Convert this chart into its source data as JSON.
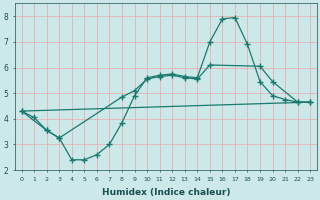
{
  "xlabel": "Humidex (Indice chaleur)",
  "bg_color": "#cce8e8",
  "line_color": "#1a7a6e",
  "grid_color": "#e8a8a8",
  "xlim": [
    -0.5,
    23.5
  ],
  "ylim": [
    2,
    8.5
  ],
  "xticks": [
    0,
    1,
    2,
    3,
    4,
    5,
    6,
    7,
    8,
    9,
    10,
    11,
    12,
    13,
    14,
    15,
    16,
    17,
    18,
    19,
    20,
    21,
    22,
    23
  ],
  "yticks": [
    2,
    3,
    4,
    5,
    6,
    7,
    8
  ],
  "line1_x": [
    0,
    1,
    2,
    3,
    4,
    5,
    6,
    7,
    8,
    9,
    10,
    11,
    12,
    13,
    14,
    15,
    16,
    17,
    18,
    19,
    20,
    21,
    22,
    23
  ],
  "line1_y": [
    4.3,
    4.05,
    3.55,
    3.25,
    2.4,
    2.4,
    2.6,
    3.0,
    3.85,
    4.9,
    5.6,
    5.7,
    5.75,
    5.65,
    5.6,
    7.0,
    7.9,
    7.95,
    6.9,
    5.45,
    4.9,
    4.75,
    4.65,
    4.65
  ],
  "line2_x": [
    0,
    2,
    3,
    8,
    9,
    10,
    11,
    12,
    13,
    14,
    15,
    19,
    20,
    22,
    23
  ],
  "line2_y": [
    4.3,
    3.55,
    3.25,
    4.85,
    5.1,
    5.55,
    5.65,
    5.7,
    5.6,
    5.55,
    6.1,
    6.05,
    5.45,
    4.65,
    4.65
  ],
  "line3_x": [
    0,
    23
  ],
  "line3_y": [
    4.3,
    4.65
  ]
}
